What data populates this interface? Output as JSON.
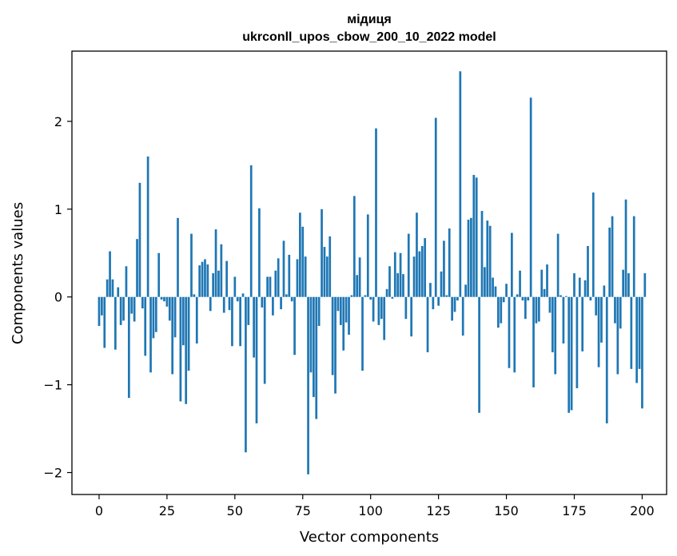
{
  "chart_data": {
    "type": "bar",
    "title": "мідиця",
    "subtitle": "ukrconll_upos_cbow_200_10_2022 model",
    "xlabel": "Vector components",
    "ylabel": "Components values",
    "xlim": [
      -10,
      209
    ],
    "ylim": [
      -2.25,
      2.8
    ],
    "xticks": [
      0,
      25,
      50,
      75,
      100,
      125,
      150,
      175,
      200
    ],
    "yticks": [
      -2,
      -1,
      0,
      1,
      2
    ],
    "ytick_labels": [
      "−2",
      "−1",
      "0",
      "1",
      "2"
    ],
    "bar_color": "#1f77b4",
    "grid": false,
    "values": [
      -0.33,
      -0.21,
      -0.58,
      0.2,
      0.52,
      0.2,
      -0.6,
      0.11,
      -0.32,
      -0.27,
      0.35,
      -1.15,
      -0.19,
      -0.28,
      0.66,
      1.3,
      -0.13,
      -0.67,
      1.6,
      -0.86,
      -0.47,
      -0.4,
      0.5,
      -0.03,
      -0.05,
      -0.11,
      -0.27,
      -0.88,
      -0.46,
      0.9,
      -1.19,
      -0.55,
      -1.22,
      -0.84,
      0.72,
      0.03,
      -0.53,
      0.36,
      0.4,
      0.43,
      0.37,
      -0.16,
      0.27,
      0.77,
      0.3,
      0.6,
      -0.18,
      0.41,
      -0.15,
      -0.56,
      0.23,
      -0.05,
      -0.56,
      0.04,
      -1.77,
      -0.32,
      1.5,
      -0.69,
      -1.44,
      1.01,
      -0.12,
      -0.99,
      0.23,
      0.23,
      -0.21,
      0.3,
      0.44,
      -0.14,
      0.64,
      0.03,
      0.48,
      -0.05,
      -0.66,
      0.43,
      0.96,
      0.8,
      0.46,
      -2.02,
      -0.86,
      -1.14,
      -1.39,
      -0.33,
      1.0,
      0.57,
      0.46,
      0.69,
      -0.89,
      -1.1,
      -0.16,
      -0.32,
      -0.61,
      -0.29,
      -0.43,
      0.02,
      1.15,
      0.25,
      0.45,
      -0.84,
      0.02,
      0.94,
      -0.03,
      -0.28,
      1.92,
      -0.32,
      -0.25,
      -0.49,
      0.09,
      0.35,
      -0.02,
      0.51,
      0.27,
      0.5,
      0.26,
      -0.25,
      0.72,
      -0.45,
      0.46,
      0.96,
      0.52,
      0.58,
      0.67,
      -0.63,
      0.16,
      -0.14,
      2.04,
      -0.1,
      0.29,
      0.64,
      0.02,
      0.78,
      -0.27,
      -0.17,
      -0.04,
      2.57,
      -0.44,
      0.14,
      0.88,
      0.9,
      1.39,
      1.36,
      -1.32,
      0.98,
      0.34,
      0.87,
      0.81,
      0.22,
      0.12,
      -0.35,
      -0.3,
      -0.06,
      0.15,
      -0.81,
      0.73,
      -0.86,
      0.03,
      0.3,
      -0.04,
      -0.25,
      -0.04,
      2.27,
      -1.03,
      -0.3,
      -0.28,
      0.31,
      0.09,
      0.37,
      -0.18,
      -0.63,
      -0.88,
      0.72,
      0.02,
      -0.53,
      0.01,
      -1.32,
      -1.29,
      0.27,
      -1.04,
      0.22,
      -0.62,
      0.19,
      0.58,
      -0.04,
      1.19,
      -0.21,
      -0.8,
      -0.52,
      0.13,
      -1.44,
      0.79,
      0.92,
      -0.3,
      -0.88,
      -0.36,
      0.31,
      1.11,
      0.27,
      -0.82,
      0.92,
      -0.98,
      -0.82,
      -1.27,
      0.27
    ]
  }
}
